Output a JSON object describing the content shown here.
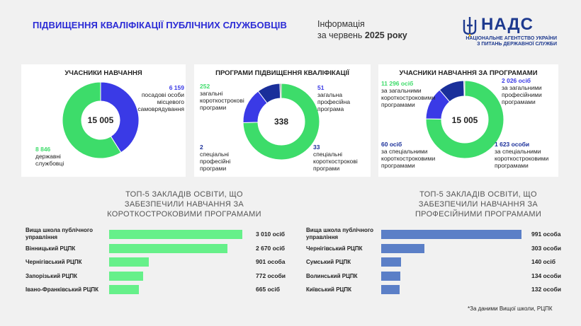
{
  "header": {
    "title": "ПІДВИЩЕННЯ КВАЛІФІКАЦІЇ ПУБЛІЧНИХ СЛУЖБОВЦІВ",
    "info_line1": "Інформація",
    "info_line2_prefix": "за червень ",
    "info_line2_bold": "2025 року",
    "logo_name": "НАДС",
    "logo_sub1": "НАЦІОНАЛЬНЕ АГЕНТСТВО УКРАЇНИ",
    "logo_sub2": "З ПИТАНЬ ДЕРЖАВНОЇ СЛУЖБИ"
  },
  "colors": {
    "green": "#3ddc6a",
    "blue": "#3a3ae6",
    "navy": "#1a2f9a",
    "bar_green": "#66f08a",
    "bar_blue": "#5b7fc7"
  },
  "chart_data": [
    {
      "type": "pie",
      "title": "УЧАСНИКИ НАВЧАННЯ",
      "center": "15 005",
      "slices": [
        {
          "value_text": "6 159",
          "value": 6159,
          "label_lines": [
            "посадові особи",
            "місцевого",
            "самоврядування"
          ],
          "color": "#3a3ae6"
        },
        {
          "value_text": "8 846",
          "value": 8846,
          "label_lines": [
            "державні",
            "службовці"
          ],
          "color": "#3ddc6a"
        }
      ]
    },
    {
      "type": "pie",
      "title": "ПРОГРАМИ ПІДВИЩЕННЯ КВАЛІФІКАЦІЇ",
      "center": "338",
      "slices": [
        {
          "value_text": "252",
          "value": 252,
          "label_lines": [
            "загальні",
            "короткострокові",
            "програми"
          ],
          "color": "#3ddc6a"
        },
        {
          "value_text": "51",
          "value": 51,
          "label_lines": [
            "загальна",
            "професійна",
            "програма"
          ],
          "color": "#3a3ae6"
        },
        {
          "value_text": "33",
          "value": 33,
          "label_lines": [
            "спеціальні",
            "короткострокові",
            "програми"
          ],
          "color": "#1a2f9a"
        },
        {
          "value_text": "2",
          "value": 2,
          "label_lines": [
            "спеціальні",
            "професійні",
            "програми"
          ],
          "color": "#7a7a7a"
        }
      ]
    },
    {
      "type": "pie",
      "title": "УЧАСНИКИ НАВЧАННЯ ЗА ПРОГРАМАМИ",
      "center": "15 005",
      "slices": [
        {
          "value_text": "11 296 осіб",
          "value": 11296,
          "label_lines": [
            "за загальними",
            "короткостроковими",
            "програмами"
          ],
          "color": "#3ddc6a"
        },
        {
          "value_text": "2 026 осіб",
          "value": 2026,
          "label_lines": [
            "за загальними",
            "професійними",
            "програмами"
          ],
          "color": "#3a3ae6"
        },
        {
          "value_text": "1 623 особи",
          "value": 1623,
          "label_lines": [
            "за спеціальними",
            "короткостроковими",
            "програмами"
          ],
          "color": "#1a2f9a"
        },
        {
          "value_text": "60 осіб",
          "value": 60,
          "label_lines": [
            "за спеціальними",
            "короткостроковими",
            "програмами"
          ],
          "color": "#7a7a7a"
        }
      ]
    },
    {
      "type": "bar",
      "title_lines": [
        "ТОП-5 ЗАКЛАДІВ ОСВІТИ, ЩО",
        "ЗАБЕЗПЕЧИЛИ НАВЧАННЯ ЗА",
        "КОРОТКОСТРОКОВИМИ ПРОГРАМАМИ"
      ],
      "categories": [
        "Вища школа публічного управління",
        "Вінницький РЦПК",
        "Чернігівський РЦПК",
        "Запорізький РЦПК",
        "Івано-Франківський РЦПК"
      ],
      "values": [
        3010,
        2670,
        901,
        772,
        665
      ],
      "value_labels": [
        "3 010 осіб",
        "2 670 осіб",
        "901 особа",
        "772 особи",
        "665 осіб"
      ],
      "color": "#66f08a"
    },
    {
      "type": "bar",
      "title_lines": [
        "ТОП-5 ЗАКЛАДІВ ОСВІТИ, ЩО",
        "ЗАБЕЗПЕЧИЛИ НАВЧАННЯ ЗА",
        "ПРОФЕСІЙНИМИ ПРОГРАМАМИ"
      ],
      "categories": [
        "Вища школа публічного управління",
        "Чернігівський РЦПК",
        "Сумський РЦПК",
        "Волинський РЦПК",
        "Київський РЦПК"
      ],
      "values": [
        991,
        303,
        140,
        134,
        132
      ],
      "value_labels": [
        "991 особа",
        "303 особи",
        "140 осіб",
        "134 особи",
        "132 особи"
      ],
      "color": "#5b7fc7"
    }
  ],
  "footnote": "*За даними Вищої школи, РЦПК"
}
